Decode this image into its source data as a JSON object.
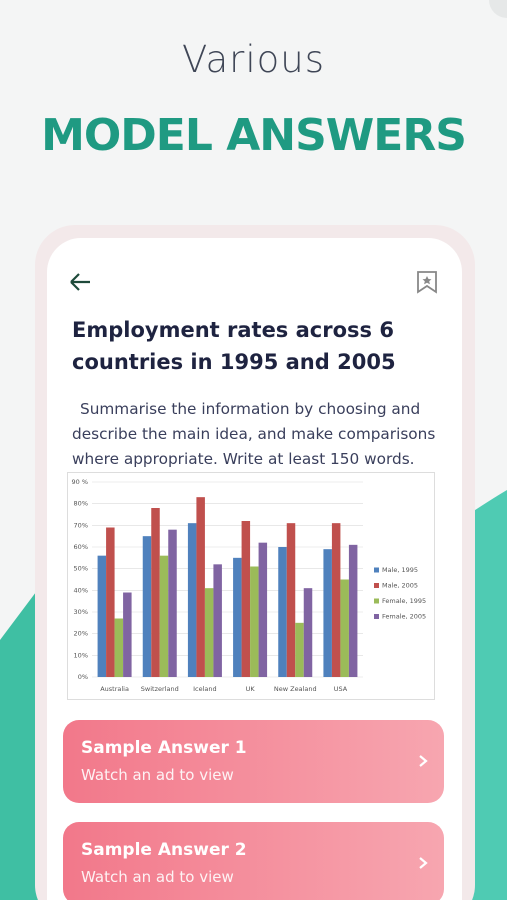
{
  "header": {
    "subtitle": "Various",
    "title": "MODEL ANSWERS"
  },
  "question": {
    "title": "Employment rates across 6 countries in 1995 and 2005",
    "prompt": "Summarise the information by choosing and describe the main idea, and make comparisons where appropriate.  Write at least 150 words."
  },
  "chart_data": {
    "type": "bar",
    "categories": [
      "Australia",
      "Switzerland",
      "Iceland",
      "UK",
      "New Zealand",
      "USA"
    ],
    "series": [
      {
        "name": "Male, 1995",
        "color": "#4f81bd",
        "values": [
          56,
          65,
          71,
          55,
          60,
          59
        ]
      },
      {
        "name": "Male, 2005",
        "color": "#c0504d",
        "values": [
          69,
          78,
          83,
          72,
          71,
          71
        ]
      },
      {
        "name": "Female, 1995",
        "color": "#9bbb59",
        "values": [
          27,
          56,
          41,
          51,
          25,
          45
        ]
      },
      {
        "name": "Female, 2005",
        "color": "#8064a2",
        "values": [
          39,
          68,
          52,
          62,
          41,
          61
        ]
      }
    ],
    "ylim": [
      0,
      90
    ],
    "yticks": [
      {
        "value": 0,
        "label": "0%"
      },
      {
        "value": 10,
        "label": "10%"
      },
      {
        "value": 20,
        "label": "20%"
      },
      {
        "value": 30,
        "label": "30%"
      },
      {
        "value": 40,
        "label": "40%"
      },
      {
        "value": 50,
        "label": "50%"
      },
      {
        "value": 60,
        "label": "60%"
      },
      {
        "value": 70,
        "label": "70%"
      },
      {
        "value": 80,
        "label": "80%"
      },
      {
        "value": 90,
        "label": "90 %"
      }
    ],
    "grid": true,
    "legend": "right"
  },
  "buttons": [
    {
      "title": "Sample Answer 1",
      "subtitle": "Watch an ad to view"
    },
    {
      "title": "Sample Answer 2",
      "subtitle": "Watch an ad to view"
    }
  ]
}
